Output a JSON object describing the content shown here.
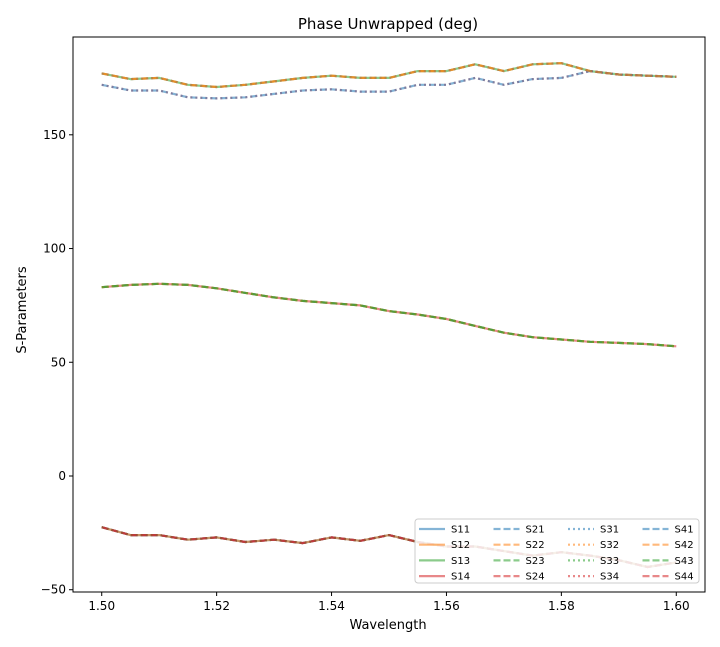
{
  "chart_data": {
    "type": "line",
    "title": "Phase Unwrapped (deg)",
    "xlabel": "Wavelength",
    "ylabel": "S-Parameters",
    "xlim": [
      1.495,
      1.605
    ],
    "ylim": [
      -51,
      193
    ],
    "xticks": [
      1.5,
      1.52,
      1.54,
      1.56,
      1.58,
      1.6
    ],
    "xtick_labels": [
      "1.50",
      "1.52",
      "1.54",
      "1.56",
      "1.58",
      "1.60"
    ],
    "yticks": [
      -50,
      0,
      50,
      100,
      150
    ],
    "ytick_labels": [
      "−50",
      "0",
      "50",
      "100",
      "150"
    ],
    "grid": false,
    "legend_position": "lower-right",
    "legend_columns": 4,
    "colors": {
      "blue": "#1f77b4",
      "orange": "#ff7f0e",
      "green": "#2ca02c",
      "red": "#d62728"
    },
    "x": [
      1.5,
      1.505,
      1.51,
      1.515,
      1.52,
      1.525,
      1.53,
      1.535,
      1.54,
      1.545,
      1.55,
      1.555,
      1.56,
      1.565,
      1.57,
      1.575,
      1.58,
      1.585,
      1.59,
      1.595,
      1.6
    ],
    "curves": {
      "A": [
        177,
        174.5,
        175,
        172,
        171,
        172,
        173.5,
        175,
        176,
        175,
        175,
        178,
        178,
        181,
        178,
        181,
        181.5,
        178,
        176.5,
        176,
        175.5
      ],
      "B": [
        172,
        169.5,
        169.5,
        166.5,
        166,
        166.5,
        168,
        169.5,
        170,
        169,
        169,
        172,
        172,
        175,
        172,
        174.5,
        175,
        178,
        176.5,
        176,
        175.5
      ],
      "C": [
        83,
        84,
        84.5,
        84,
        82.5,
        80.5,
        78.5,
        77,
        76,
        75,
        72.5,
        71,
        69,
        66,
        63,
        61,
        60,
        59,
        58.5,
        58,
        57
      ],
      "D": [
        -22.5,
        -26,
        -26,
        -28,
        -27,
        -29,
        -28,
        -29.5,
        -27,
        -28.5,
        -26,
        -29,
        -31,
        -31,
        -33,
        -35,
        -33.5,
        -35,
        -37,
        -40,
        -38
      ]
    },
    "series": [
      {
        "name": "S11",
        "color": "blue",
        "dash": "solid",
        "curve": "D"
      },
      {
        "name": "S12",
        "color": "orange",
        "dash": "solid",
        "curve": "D"
      },
      {
        "name": "S13",
        "color": "green",
        "dash": "solid",
        "curve": "A"
      },
      {
        "name": "S14",
        "color": "red",
        "dash": "solid",
        "curve": "C"
      },
      {
        "name": "S21",
        "color": "blue",
        "dash": "dashed",
        "curve": "D"
      },
      {
        "name": "S22",
        "color": "orange",
        "dash": "dashed",
        "curve": "A"
      },
      {
        "name": "S23",
        "color": "green",
        "dash": "dashed",
        "curve": "C"
      },
      {
        "name": "S24",
        "color": "red",
        "dash": "dashed",
        "curve": "D"
      },
      {
        "name": "S31",
        "color": "blue",
        "dash": "dotted",
        "curve": "A"
      },
      {
        "name": "S32",
        "color": "orange",
        "dash": "dotted",
        "curve": "C"
      },
      {
        "name": "S33",
        "color": "green",
        "dash": "dotted",
        "curve": "D"
      },
      {
        "name": "S34",
        "color": "red",
        "dash": "dotted",
        "curve": "B"
      },
      {
        "name": "S41",
        "color": "blue",
        "dash": "dashed",
        "curve": "B"
      },
      {
        "name": "S42",
        "color": "orange",
        "dash": "dashed",
        "curve": "A"
      },
      {
        "name": "S43",
        "color": "green",
        "dash": "dashed",
        "curve": "C"
      },
      {
        "name": "S44",
        "color": "red",
        "dash": "dashed",
        "curve": "D"
      }
    ]
  }
}
